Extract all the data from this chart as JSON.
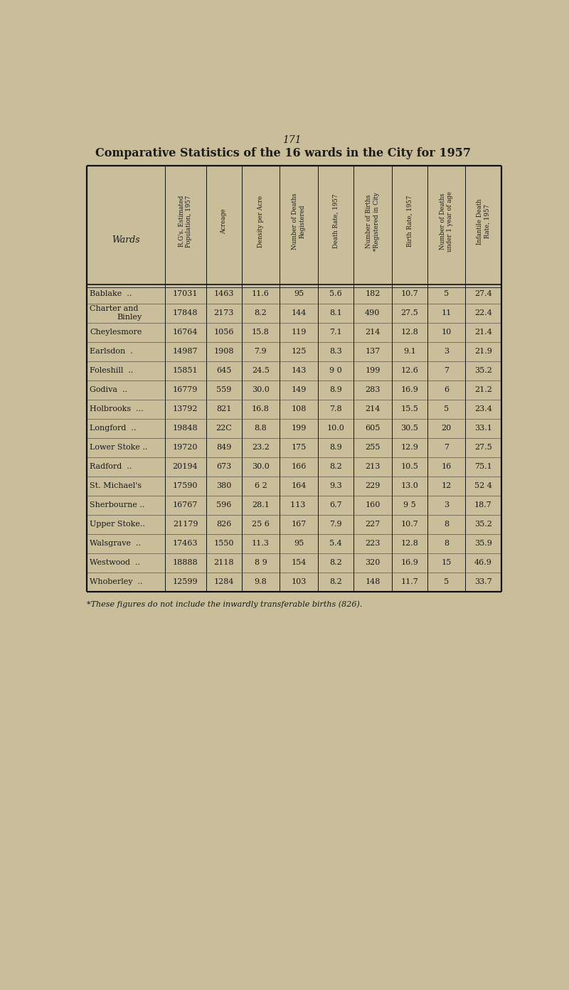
{
  "page_number": "171",
  "title": "Comparative Statistics of the 16 wards in the City for 1957",
  "background_color": "#c9bd9a",
  "text_color": "#1a1a1a",
  "col_headers_rotated": [
    "R.G's. Estimated\nPopulation, 1957",
    "Acreage",
    "Density per Acre",
    "Number of Deaths\nRegistered",
    "Death Rate, 1957",
    "Number of Births\n*Registered in City",
    "Birth Rate, 1957",
    "Number of Deaths\nunder 1 year of age",
    "Infantile Death\nRate, 1957"
  ],
  "ward_header": "Wards",
  "rows": [
    [
      "Bablake  ..",
      "17031",
      "1463",
      "11.6",
      "95",
      "5.6",
      "182",
      "10.7",
      "5",
      "27.4"
    ],
    [
      "Charter and\nBinley",
      "17848",
      "2173",
      "8.2",
      "144",
      "8.1",
      "490",
      "27.5",
      "11",
      "22.4"
    ],
    [
      "Cheylesmore",
      "16764",
      "1056",
      "15.8",
      "119",
      "7.1",
      "214",
      "12.8",
      "10",
      "21.4"
    ],
    [
      "Earlsdon  .",
      "14987",
      "1908",
      "7.9",
      "125",
      "8.3",
      "137",
      "9.1",
      "3",
      "21.9"
    ],
    [
      "Foleshill  ..",
      "15851",
      "645",
      "24.5",
      "143",
      "9 0",
      "199",
      "12.6",
      "7",
      "35.2"
    ],
    [
      "Godiva  ..",
      "16779",
      "559",
      "30.0",
      "149",
      "8.9",
      "283",
      "16.9",
      "6",
      "21.2"
    ],
    [
      "Holbrooks  ...",
      "13792",
      "821",
      "16.8",
      "108",
      "7.8",
      "214",
      "15.5",
      "5",
      "23.4"
    ],
    [
      "Longford  ..",
      "19848",
      "22C",
      "8.8",
      "199",
      "10.0",
      "605",
      "30.5",
      "20",
      "33.1"
    ],
    [
      "Lower Stoke ..",
      "19720",
      "849",
      "23.2",
      "175",
      "8.9",
      "255",
      "12.9",
      "7",
      "27.5"
    ],
    [
      "Radford  ..",
      "20194",
      "673",
      "30.0",
      "166",
      "8.2",
      "213",
      "10.5",
      "16",
      "75.1"
    ],
    [
      "St. Michael's",
      "17590",
      "380",
      "6 2",
      "164",
      "9.3",
      "229",
      "13.0",
      "12",
      "52 4"
    ],
    [
      "Sherbourne ..",
      "16767",
      "596",
      "28.1",
      "113 ",
      "6.7",
      "160",
      "9 5",
      "3",
      "18.7"
    ],
    [
      "Upper Stoke..",
      "21179",
      "826",
      "25 6",
      "167",
      "7.9",
      "227",
      "10.7",
      "8",
      "35.2"
    ],
    [
      "Walsgrave  ..",
      "17463",
      "1550",
      "11.3",
      "95",
      "5.4",
      "223",
      "12.8",
      "8",
      "35.9"
    ],
    [
      "Westwood  ..",
      "18888",
      "2118",
      "8 9",
      "154",
      "8.2",
      "320",
      "16.9",
      "15",
      "46.9"
    ],
    [
      "Whoberley  ..",
      "12599",
      "1284",
      "9.8",
      "103",
      "8.2",
      "148",
      "11.7",
      "5",
      "33.7"
    ]
  ],
  "footnote": "*These figures do not include the inwardly transferable births (826).",
  "col_widths_raw": [
    1.8,
    0.95,
    0.82,
    0.88,
    0.88,
    0.82,
    0.88,
    0.82,
    0.88,
    0.82
  ]
}
